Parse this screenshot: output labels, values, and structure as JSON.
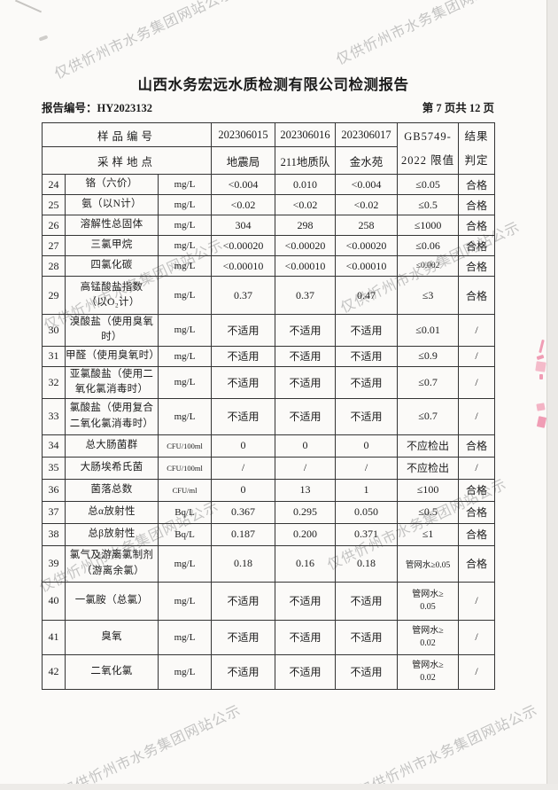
{
  "watermark": {
    "text": "仅供忻州市水务集团网站公示"
  },
  "header": {
    "title": "山西水务宏远水质检测有限公司检测报告",
    "report_no": "报告编号：HY2023132",
    "page_info": "第 7 页共 12 页"
  },
  "table": {
    "head": {
      "sample_id_label": "样品编号",
      "sample_site_label": "采样地点",
      "sample_ids": [
        "202306015",
        "202306016",
        "202306017"
      ],
      "sample_sites": [
        "地震局",
        "211地质队",
        "金水苑"
      ],
      "limit_line1": "GB5749-",
      "limit_line2": "2022 限值",
      "result_line1": "结果",
      "result_line2": "判定"
    },
    "rows": [
      {
        "no": "24",
        "name": "铬（六价）",
        "unit": "mg/L",
        "values": [
          "<0.004",
          "0.010",
          "<0.004"
        ],
        "limit": "≤0.05",
        "verdict": "合格"
      },
      {
        "no": "25",
        "name": "氨（以N计）",
        "unit": "mg/L",
        "values": [
          "<0.02",
          "<0.02",
          "<0.02"
        ],
        "limit": "≤0.5",
        "verdict": "合格"
      },
      {
        "no": "26",
        "name": "溶解性总固体",
        "unit": "mg/L",
        "values": [
          "304",
          "298",
          "258"
        ],
        "limit": "≤1000",
        "verdict": "合格"
      },
      {
        "no": "27",
        "name": "三氯甲烷",
        "unit": "mg/L",
        "values": [
          "<0.00020",
          "<0.00020",
          "<0.00020"
        ],
        "limit": "≤0.06",
        "verdict": "合格"
      },
      {
        "no": "28",
        "name": "四氯化碳",
        "unit": "mg/L",
        "values": [
          "<0.00010",
          "<0.00010",
          "<0.00010"
        ],
        "limit": "≤0.002",
        "verdict": "合格"
      },
      {
        "no": "29",
        "name": "高锰酸盐指数\n （以O₂计）",
        "unit": "mg/L",
        "values": [
          "0.37",
          "0.37",
          "0.47"
        ],
        "limit": "≤3",
        "verdict": "合格"
      },
      {
        "no": "30",
        "name": "溴酸盐（使用臭氧\n时）",
        "unit": "mg/L",
        "values": [
          "不适用",
          "不适用",
          "不适用"
        ],
        "limit": "≤0.01",
        "verdict": "/"
      },
      {
        "no": "31",
        "name": "甲醛（使用臭氧时）",
        "unit": "mg/L",
        "values": [
          "不适用",
          "不适用",
          "不适用"
        ],
        "limit": "≤0.9",
        "verdict": "/"
      },
      {
        "no": "32",
        "name": "亚氯酸盐（使用二\n氧化氯消毒时）",
        "unit": "mg/L",
        "values": [
          "不适用",
          "不适用",
          "不适用"
        ],
        "limit": "≤0.7",
        "verdict": "/"
      },
      {
        "no": "33",
        "name": "氯酸盐（使用复合\n二氧化氯消毒时）",
        "unit": "mg/L",
        "values": [
          "不适用",
          "不适用",
          "不适用"
        ],
        "limit": "≤0.7",
        "verdict": "/"
      },
      {
        "no": "34",
        "name": "总大肠菌群",
        "unit": "CFU/100ml",
        "values": [
          "0",
          "0",
          "0"
        ],
        "limit": "不应检出",
        "verdict": "合格"
      },
      {
        "no": "35",
        "name": "大肠埃希氏菌",
        "unit": "CFU/100ml",
        "values": [
          "/",
          "/",
          "/"
        ],
        "limit": "不应检出",
        "verdict": "/"
      },
      {
        "no": "36",
        "name": "菌落总数",
        "unit": "CFU/ml",
        "values": [
          "0",
          "13",
          "1"
        ],
        "limit": "≤100",
        "verdict": "合格"
      },
      {
        "no": "37",
        "name": "总α放射性",
        "unit": "Bq/L",
        "values": [
          "0.367",
          "0.295",
          "0.050"
        ],
        "limit": "≤0.5",
        "verdict": "合格"
      },
      {
        "no": "38",
        "name": "总β放射性",
        "unit": "Bq/L",
        "values": [
          "0.187",
          "0.200",
          "0.371"
        ],
        "limit": "≤1",
        "verdict": "合格"
      },
      {
        "no": "39",
        "name": "氯气及游离氯制剂\n （游离余氯）",
        "unit": "mg/L",
        "values": [
          "0.18",
          "0.16",
          "0.18"
        ],
        "limit": "管网水≥0.05",
        "verdict": "合格"
      },
      {
        "no": "40",
        "name": "一氯胺（总氯）",
        "unit": "mg/L",
        "values": [
          "不适用",
          "不适用",
          "不适用"
        ],
        "limit_lines": [
          "管网水≥",
          "0.05"
        ],
        "verdict": "/"
      },
      {
        "no": "41",
        "name": "臭氧",
        "unit": "mg/L",
        "values": [
          "不适用",
          "不适用",
          "不适用"
        ],
        "limit_lines": [
          "管网水≥",
          "0.02"
        ],
        "verdict": "/"
      },
      {
        "no": "42",
        "name": "二氧化氯",
        "unit": "mg/L",
        "values": [
          "不适用",
          "不适用",
          "不适用"
        ],
        "limit_lines": [
          "管网水≥",
          "0.02"
        ],
        "verdict": "/"
      }
    ]
  }
}
